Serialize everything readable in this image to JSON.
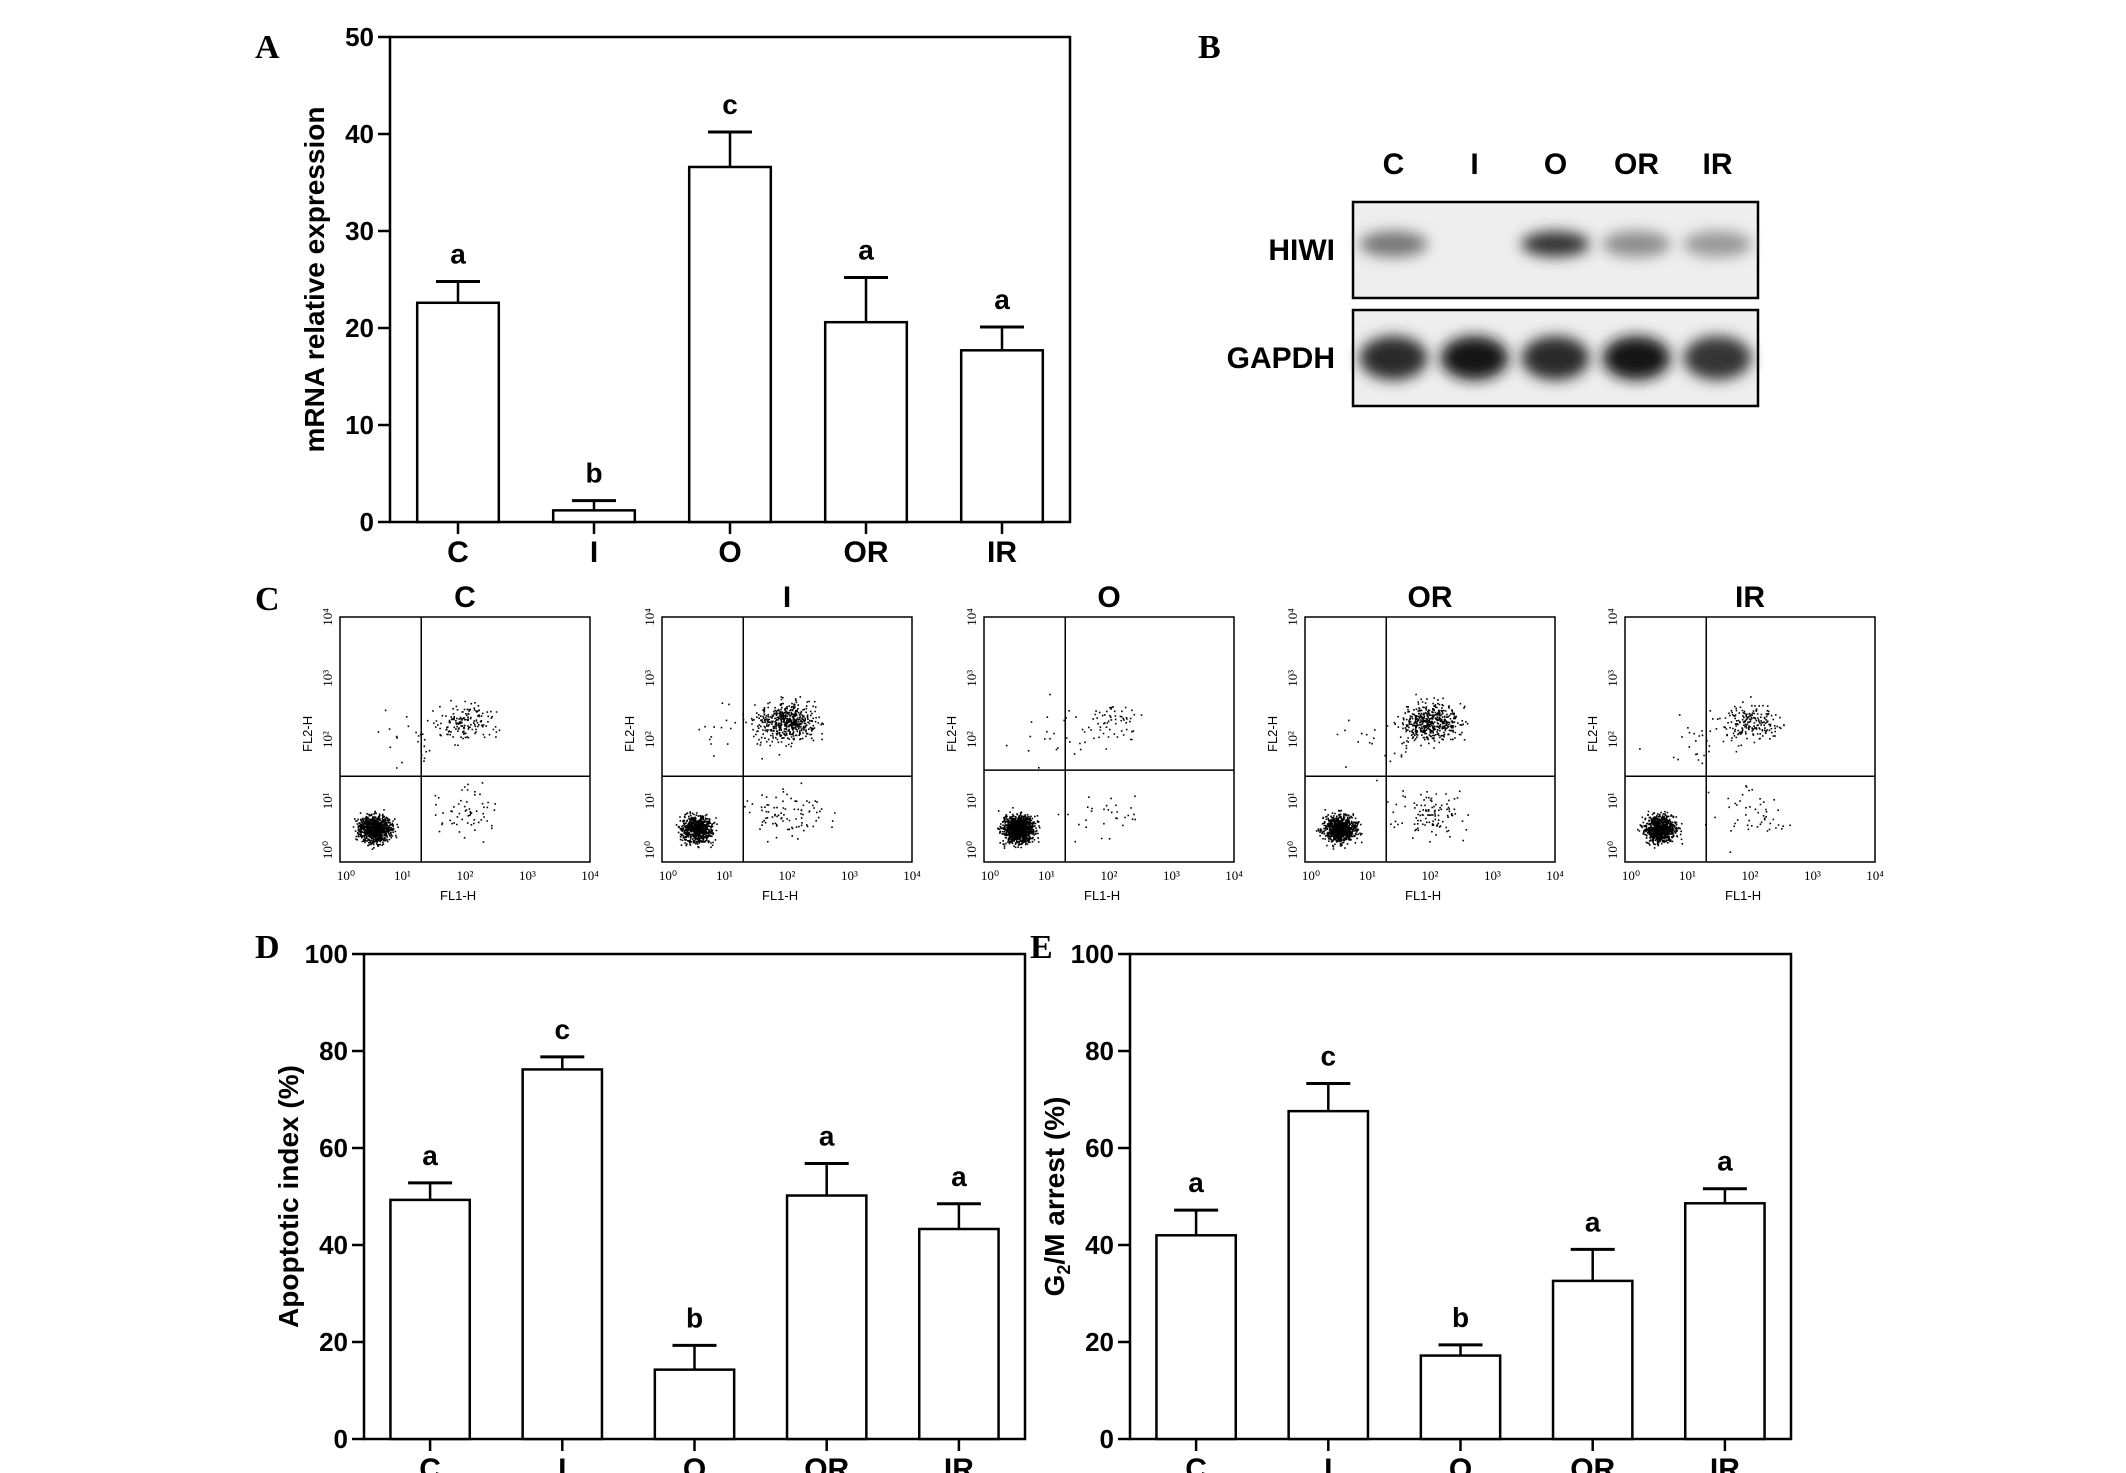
{
  "panels": {
    "a": "A",
    "b": "B",
    "c": "C",
    "d": "D",
    "e": "E"
  },
  "chart_data": [
    {
      "id": "A",
      "type": "bar",
      "title": "",
      "categories": [
        "C",
        "I",
        "O",
        "OR",
        "IR"
      ],
      "values": [
        22.6,
        1.2,
        36.6,
        20.6,
        17.7
      ],
      "errors": [
        2.2,
        1.0,
        3.6,
        4.6,
        2.4
      ],
      "significance": [
        "a",
        "b",
        "c",
        "a",
        "a"
      ],
      "xlabel": "",
      "ylabel": "mRNA relative expression",
      "ylim": [
        0,
        50
      ],
      "yticks": [
        "0",
        "10",
        "20",
        "30",
        "40",
        "50"
      ]
    },
    {
      "id": "D",
      "type": "bar",
      "title": "",
      "categories": [
        "C",
        "I",
        "O",
        "OR",
        "IR"
      ],
      "values": [
        49.3,
        76.2,
        14.3,
        50.2,
        43.3
      ],
      "errors": [
        3.5,
        2.6,
        5.0,
        6.6,
        5.2
      ],
      "significance": [
        "a",
        "c",
        "b",
        "a",
        "a"
      ],
      "xlabel": "",
      "ylabel": "Apoptotic index (%)",
      "ylim": [
        0,
        100
      ],
      "yticks": [
        "0",
        "20",
        "40",
        "60",
        "80",
        "100"
      ]
    },
    {
      "id": "E",
      "type": "bar",
      "title": "",
      "categories": [
        "C",
        "I",
        "O",
        "OR",
        "IR"
      ],
      "values": [
        42.0,
        67.6,
        17.2,
        32.6,
        48.6
      ],
      "errors": [
        5.2,
        5.7,
        2.2,
        6.5,
        3.0
      ],
      "significance": [
        "a",
        "c",
        "b",
        "a",
        "a"
      ],
      "xlabel": "",
      "ylabel": "G2/M arrest (%)",
      "ylim": [
        0,
        100
      ],
      "yticks": [
        "0",
        "20",
        "40",
        "60",
        "80",
        "100"
      ]
    },
    {
      "id": "C",
      "type": "scatter",
      "xlabel": "FL1-H",
      "ylabel": "FL2-H",
      "xlim_log10": [
        0,
        4
      ],
      "ylim_log10": [
        0,
        4
      ],
      "ticks": [
        "10⁰",
        "10¹",
        "10²",
        "10³",
        "10⁴"
      ],
      "plots": [
        {
          "title": "C",
          "gate": [
            1.3,
            1.4
          ],
          "live": 900,
          "upper_right": 160,
          "lower_right": 60
        },
        {
          "title": "I",
          "gate": [
            1.3,
            1.4
          ],
          "live": 700,
          "upper_right": 520,
          "lower_right": 90
        },
        {
          "title": "O",
          "gate": [
            1.3,
            1.5
          ],
          "live": 1100,
          "upper_right": 60,
          "lower_right": 30
        },
        {
          "title": "OR",
          "gate": [
            1.3,
            1.4
          ],
          "live": 800,
          "upper_right": 480,
          "lower_right": 110
        },
        {
          "title": "IR",
          "gate": [
            1.3,
            1.4
          ],
          "live": 800,
          "upper_right": 200,
          "lower_right": 50
        }
      ]
    }
  ],
  "western_blot": {
    "lanes": [
      "C",
      "I",
      "O",
      "OR",
      "IR"
    ],
    "rows": [
      {
        "label": "HIWI",
        "intensity": [
          0.55,
          0.0,
          0.85,
          0.45,
          0.4
        ]
      },
      {
        "label": "GAPDH",
        "intensity": [
          0.9,
          1.0,
          0.9,
          1.0,
          0.85
        ]
      }
    ]
  }
}
